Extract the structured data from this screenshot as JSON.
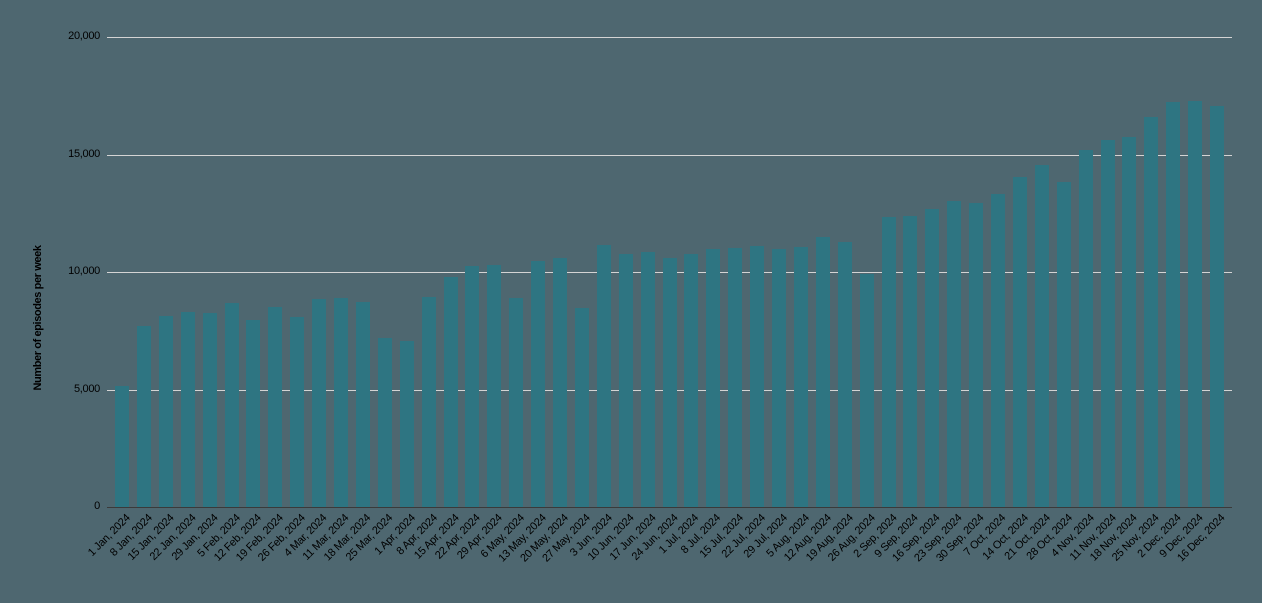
{
  "chart_data": {
    "type": "bar",
    "title": "",
    "xlabel": "",
    "ylabel": "Number of episodes per week",
    "ylim": [
      0,
      20000
    ],
    "yticks": [
      0,
      5000,
      10000,
      15000,
      20000
    ],
    "ytick_labels": [
      "0",
      "5,000",
      "10,000",
      "15,000",
      "20,000"
    ],
    "grid": true,
    "legend": null,
    "bar_color": "#2e7582",
    "background_color": "#4e6770",
    "categories": [
      "1 Jan, 2024",
      "8 Jan, 2024",
      "15 Jan, 2024",
      "22 Jan, 2024",
      "29 Jan, 2024",
      "5 Feb, 2024",
      "12 Feb, 2024",
      "19 Feb, 2024",
      "26 Feb, 2024",
      "4 Mar, 2024",
      "11 Mar, 2024",
      "18 Mar, 2024",
      "25 Mar, 2024",
      "1 Apr, 2024",
      "8 Apr, 2024",
      "15 Apr, 2024",
      "22 Apr, 2024",
      "29 Apr, 2024",
      "6 May, 2024",
      "13 May, 2024",
      "20 May, 2024",
      "27 May, 2024",
      "3 Jun, 2024",
      "10 Jun, 2024",
      "17 Jun, 2024",
      "24 Jun, 2024",
      "1 Jul, 2024",
      "8 Jul, 2024",
      "15 Jul, 2024",
      "22 Jul, 2024",
      "29 Jul, 2024",
      "5 Aug, 2024",
      "12 Aug, 2024",
      "19 Aug, 2024",
      "26 Aug, 2024",
      "2 Sep, 2024",
      "9 Sep, 2024",
      "16 Sep, 2024",
      "23 Sep, 2024",
      "30 Sep, 2024",
      "7 Oct, 2024",
      "14 Oct, 2024",
      "21 Oct, 2024",
      "28 Oct, 2024",
      "4 Nov, 2024",
      "11 Nov, 2024",
      "18 Nov, 2024",
      "25 Nov, 2024",
      "2 Dec, 2024",
      "9 Dec, 2024",
      "16 Dec, 2024"
    ],
    "values": [
      5150,
      7700,
      8130,
      8300,
      8260,
      8690,
      7960,
      8510,
      8090,
      8850,
      8890,
      8720,
      7190,
      7060,
      8940,
      9790,
      10260,
      10300,
      8890,
      10470,
      10600,
      8470,
      11150,
      10770,
      10850,
      10600,
      10770,
      10980,
      11020,
      11110,
      10980,
      11060,
      11490,
      11280,
      9910,
      12340,
      12380,
      12680,
      13020,
      12940,
      13320,
      14040,
      14550,
      13830,
      15190,
      15620,
      15740,
      16600,
      17230,
      17280,
      17060
    ]
  }
}
